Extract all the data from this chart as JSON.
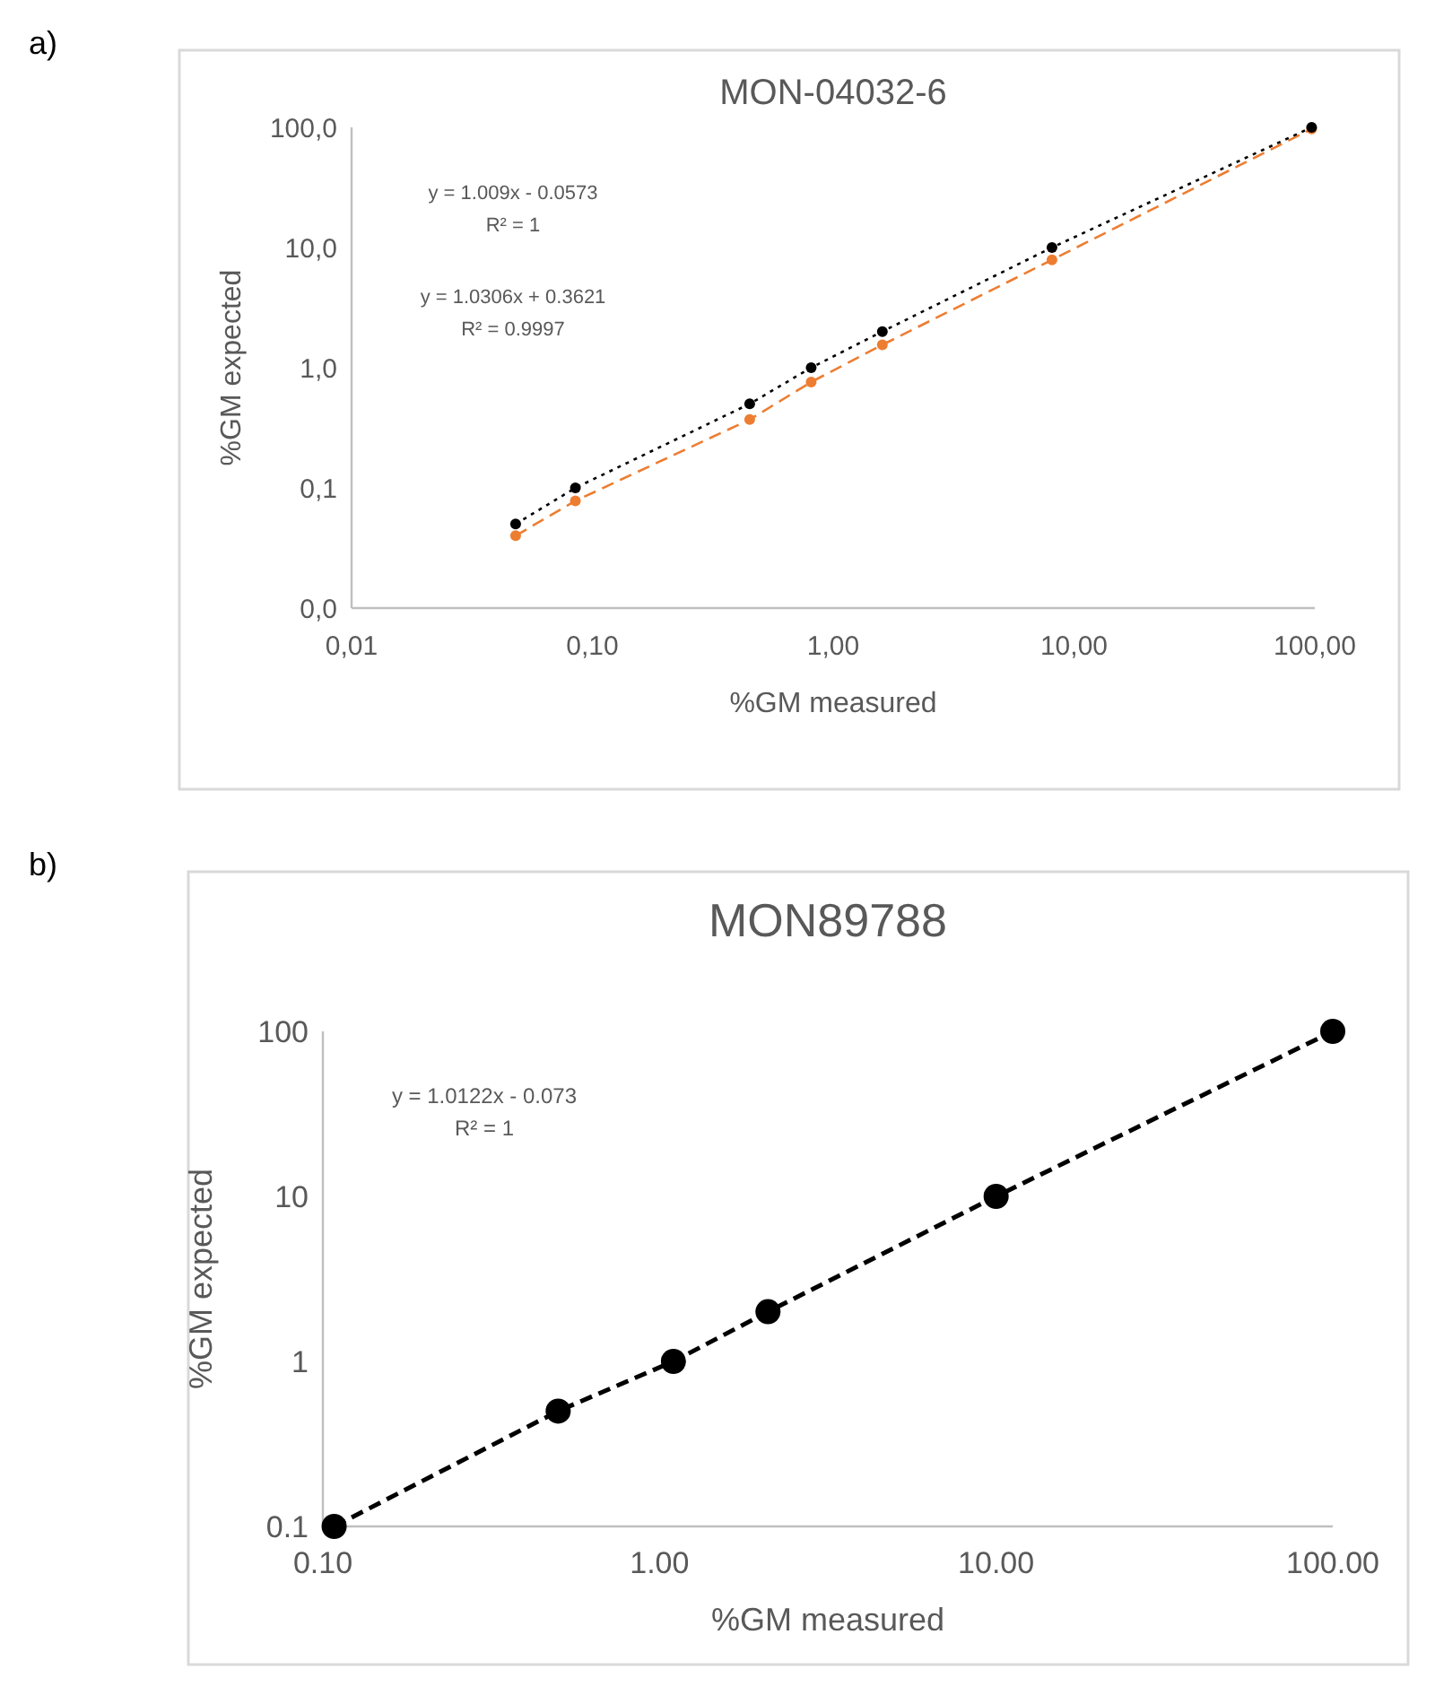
{
  "chart_data": [
    {
      "type": "line",
      "title": "MON-04032-6",
      "xlabel": "%GM measured",
      "ylabel": "%GM expected",
      "log": "xy",
      "grid": false,
      "marker": "circle",
      "xlim": [
        0.01,
        100
      ],
      "xticks": [
        {
          "value": 0.01,
          "label": "0,01"
        },
        {
          "value": 0.1,
          "label": "0,10"
        },
        {
          "value": 1,
          "label": "1,00"
        },
        {
          "value": 10,
          "label": "10,00"
        },
        {
          "value": 100,
          "label": "100,00"
        }
      ],
      "ylim": [
        0.01,
        100
      ],
      "yticks": [
        {
          "value": 0.01,
          "label": "0,0"
        },
        {
          "value": 0.1,
          "label": "0,1"
        },
        {
          "value": 1,
          "label": "1,0"
        },
        {
          "value": 10,
          "label": "10,0"
        },
        {
          "value": 100,
          "label": "100,0"
        }
      ],
      "annotations": [
        "a)",
        "y = 1.009x - 0.0573",
        "R² = 1",
        "y = 1.0306x + 0.3621",
        "R² = 0.9997"
      ],
      "series": [
        {
          "color": "#ed7d31",
          "line_style": "dashed",
          "x": [
            0.048,
            0.085,
            0.45,
            0.81,
            1.6,
            8.1,
            97
          ],
          "values": [
            0.04,
            0.078,
            0.37,
            0.76,
            1.55,
            7.9,
            97
          ]
        },
        {
          "color": "#000000",
          "line_style": "dotted",
          "x": [
            0.048,
            0.085,
            0.45,
            0.81,
            1.6,
            8.1,
            97
          ],
          "values": [
            0.05,
            0.1,
            0.5,
            1,
            2,
            10,
            100
          ]
        }
      ]
    },
    {
      "type": "line",
      "title": "MON89788",
      "xlabel": "%GM measured",
      "ylabel": "%GM expected",
      "log": "xy",
      "grid": false,
      "marker": "circle",
      "xlim": [
        0.1,
        100
      ],
      "xticks": [
        {
          "value": 0.1,
          "label": "0.10"
        },
        {
          "value": 1,
          "label": "1.00"
        },
        {
          "value": 10,
          "label": "10.00"
        },
        {
          "value": 100,
          "label": "100.00"
        }
      ],
      "ylim": [
        0.1,
        100
      ],
      "yticks": [
        0.1,
        1,
        10,
        100
      ],
      "annotations": [
        "b)",
        "y = 1.0122x - 0.073",
        "R² = 1"
      ],
      "series": [
        {
          "color": "#000000",
          "line_style": "dashed",
          "x": [
            0.108,
            0.5,
            1.1,
            2.1,
            10,
            100
          ],
          "values": [
            0.1,
            0.5,
            1,
            2,
            10,
            100
          ]
        }
      ]
    }
  ]
}
